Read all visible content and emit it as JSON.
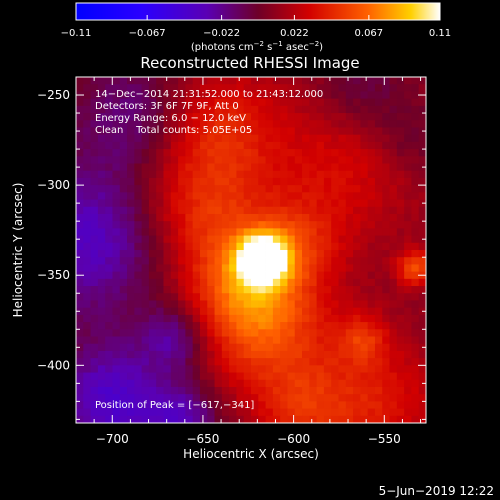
{
  "chart_data": {
    "type": "heatmap",
    "title": "Reconstructed RHESSI Image",
    "xlabel": "Heliocentric X (arcsec)",
    "ylabel": "Heliocentric Y (arcsec)",
    "xlim": [
      -720,
      -527
    ],
    "ylim": [
      -432,
      -240
    ],
    "x_ticks": [
      -700,
      -650,
      -600,
      -550
    ],
    "x_tick_labels": [
      "−700",
      "−650",
      "−600",
      "−550"
    ],
    "y_ticks": [
      -250,
      -300,
      -350,
      -400
    ],
    "y_tick_labels": [
      "−250",
      "−300",
      "−350",
      "−400"
    ],
    "colorbar": {
      "range": [
        -0.11,
        0.11
      ],
      "ticks": [
        -0.11,
        -0.067,
        -0.022,
        0.022,
        0.067,
        0.11
      ],
      "tick_labels": [
        "−0.11",
        "−0.067",
        "−0.022",
        "0.022",
        "0.067",
        "0.11"
      ],
      "label_main": "(photons cm",
      "label_exp1": "−2",
      "label_mid": " s",
      "label_exp2": "−1",
      "label_end": " asec",
      "label_exp3": "−2",
      "label_close": ")"
    },
    "annotations": [
      "14−Dec−2014 21:31:52.000 to 21:43:12.000",
      "Detectors: 3F 6F 7F 9F, Att 0",
      "Energy Range: 6.0 − 12.0 keV",
      "Clean    Total counts: 5.05E+05"
    ],
    "peak_label": "Position of Peak = [−617,−341]",
    "peak": {
      "x": -617,
      "y": -341,
      "value": 0.11
    },
    "image_features": [
      {
        "x": -617,
        "y": -341,
        "sigma": 9,
        "amp": 1.1
      },
      {
        "x": -627,
        "y": -353,
        "sigma": 22,
        "amp": 0.45
      },
      {
        "x": -598,
        "y": -332,
        "sigma": 16,
        "amp": 0.25
      },
      {
        "x": -533,
        "y": -346,
        "sigma": 7,
        "amp": 0.5
      },
      {
        "x": -562,
        "y": -385,
        "sigma": 10,
        "amp": 0.3
      },
      {
        "x": -615,
        "y": -380,
        "sigma": 26,
        "amp": 0.42
      },
      {
        "x": -652,
        "y": -312,
        "sigma": 24,
        "amp": 0.35
      },
      {
        "x": -640,
        "y": -268,
        "sigma": 22,
        "amp": 0.32
      },
      {
        "x": -575,
        "y": -290,
        "sigma": 30,
        "amp": 0.25
      },
      {
        "x": -555,
        "y": -420,
        "sigma": 24,
        "amp": 0.3
      },
      {
        "x": -595,
        "y": -425,
        "sigma": 18,
        "amp": 0.28
      },
      {
        "x": -690,
        "y": -260,
        "sigma": 22,
        "amp": -0.25
      },
      {
        "x": -713,
        "y": -330,
        "sigma": 30,
        "amp": -0.45
      },
      {
        "x": -700,
        "y": -420,
        "sigma": 22,
        "amp": -0.5
      },
      {
        "x": -665,
        "y": -385,
        "sigma": 13,
        "amp": -0.35
      },
      {
        "x": -562,
        "y": -248,
        "sigma": 18,
        "amp": -0.2
      },
      {
        "x": -535,
        "y": -275,
        "sigma": 14,
        "amp": -0.15
      },
      {
        "x": -660,
        "y": -430,
        "sigma": 14,
        "amp": -0.35
      }
    ]
  },
  "footer": {
    "date": "5−Jun−2019 12:22"
  }
}
